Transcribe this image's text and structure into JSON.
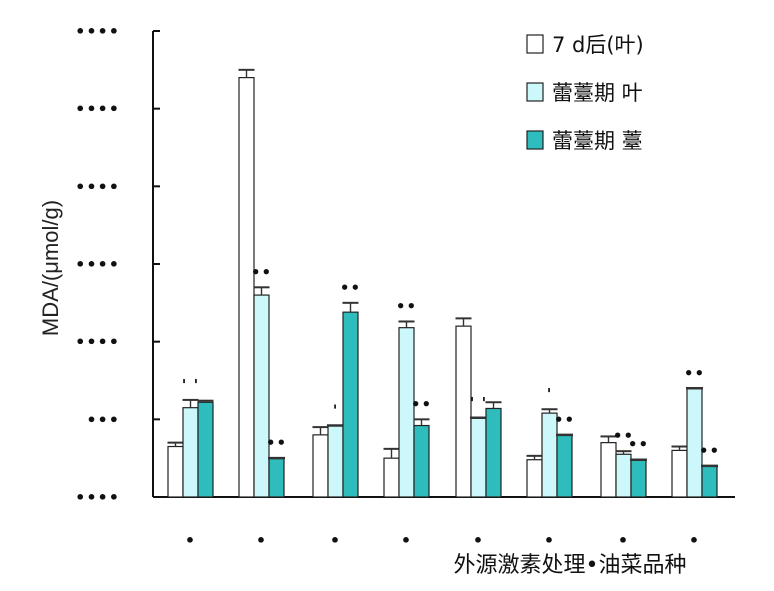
{
  "chart_data": {
    "type": "bar",
    "title": "",
    "ylabel": "MDA/(μmol/g)",
    "xlabel": "外源激素处理•油菜品种",
    "ylim": [
      0,
      6
    ],
    "yticks": [
      0,
      1,
      2,
      3,
      4,
      5,
      6
    ],
    "ytick_labels": [
      "••••",
      "•••",
      "••••",
      "••••",
      "••••",
      "••••",
      "••••"
    ],
    "categories": [
      "•",
      "•",
      "•",
      "•",
      "•",
      "•",
      "•",
      "•"
    ],
    "series": [
      {
        "name": "7 d后(叶)",
        "color": "#ffffff",
        "values": [
          0.65,
          5.4,
          0.8,
          0.5,
          2.2,
          0.48,
          0.7,
          0.6
        ],
        "errors": [
          0.05,
          0.1,
          0.1,
          0.12,
          0.1,
          0.05,
          0.08,
          0.05
        ]
      },
      {
        "name": "蕾薹期 叶",
        "color": "#ccf8fb",
        "values": [
          1.15,
          2.6,
          0.92,
          2.18,
          1.02,
          1.08,
          0.55,
          1.4
        ],
        "errors": [
          0.1,
          0.1,
          0.0,
          0.08,
          0.0,
          0.05,
          0.04,
          0.0
        ]
      },
      {
        "name": "蕾薹期 薹",
        "color": "#2fbcbc",
        "values": [
          1.22,
          0.5,
          2.38,
          0.92,
          1.14,
          0.8,
          0.48,
          0.4
        ],
        "errors": [
          0.02,
          0.0,
          0.12,
          0.08,
          0.08,
          0.0,
          0.0,
          0.0
        ]
      }
    ],
    "significance": [
      {
        "bar": [
          0,
          1
        ],
        "text": "' '"
      },
      {
        "bar": [
          1,
          1
        ],
        "text": "••"
      },
      {
        "bar": [
          1,
          2
        ],
        "text": "••"
      },
      {
        "bar": [
          2,
          2
        ],
        "text": "••"
      },
      {
        "bar": [
          2,
          1
        ],
        "text": "'"
      },
      {
        "bar": [
          3,
          1
        ],
        "text": "••"
      },
      {
        "bar": [
          3,
          2
        ],
        "text": "••"
      },
      {
        "bar": [
          4,
          1
        ],
        "text": "' '"
      },
      {
        "bar": [
          5,
          1
        ],
        "text": "'"
      },
      {
        "bar": [
          5,
          2
        ],
        "text": "••"
      },
      {
        "bar": [
          6,
          1
        ],
        "text": "••"
      },
      {
        "bar": [
          6,
          2
        ],
        "text": "••"
      },
      {
        "bar": [
          7,
          1
        ],
        "text": "••"
      },
      {
        "bar": [
          7,
          2
        ],
        "text": "••"
      }
    ],
    "legend_position": "top-right",
    "grid": false
  }
}
